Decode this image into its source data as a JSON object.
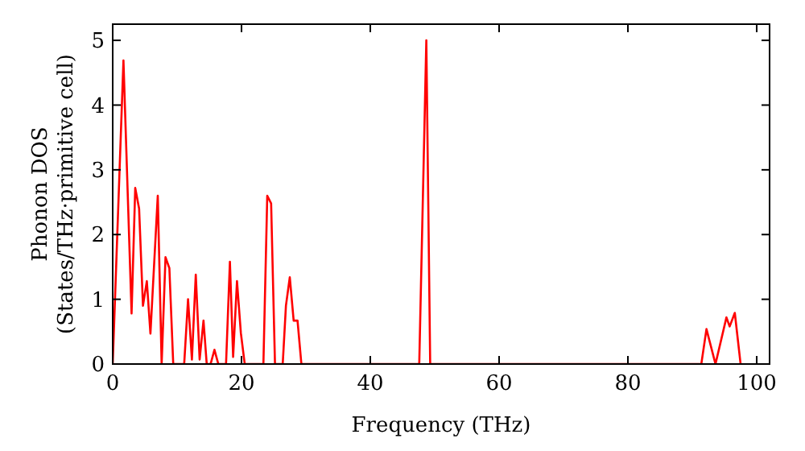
{
  "chart_data": {
    "type": "line",
    "xlabel": "Frequency (THz)",
    "ylabel": "Phonon DOS\n(States/THz·primitive cell)",
    "xlim": [
      0,
      102
    ],
    "ylim": [
      0,
      5.25
    ],
    "xticks": [
      0,
      20,
      40,
      60,
      80,
      100
    ],
    "yticks": [
      0,
      1,
      2,
      3,
      4,
      5
    ],
    "grid": false,
    "series": [
      {
        "color": "#ff0000",
        "x": [
          0,
          1.67,
          2.93,
          3.5,
          4.1,
          4.7,
          5.3,
          5.86,
          7.0,
          7.6,
          8.2,
          8.8,
          9.4,
          11.1,
          11.7,
          12.3,
          12.9,
          13.5,
          14.1,
          14.6,
          15.2,
          15.8,
          16.4,
          17.6,
          18.2,
          18.7,
          19.3,
          19.9,
          20.5,
          23.4,
          24.0,
          24.6,
          25.2,
          26.4,
          26.9,
          27.5,
          28.1,
          28.7,
          29.3,
          47.6,
          48.7,
          49.3,
          91.4,
          92.2,
          93.6,
          95.3,
          95.8,
          96.6,
          97.5
        ],
        "values": [
          0,
          4.69,
          0.78,
          2.72,
          2.4,
          0.9,
          1.28,
          0.47,
          2.6,
          0,
          1.65,
          1.48,
          0,
          0,
          1.0,
          0.07,
          1.38,
          0.07,
          0.67,
          0,
          0,
          0.22,
          0,
          0,
          1.58,
          0.11,
          1.28,
          0.48,
          0,
          0,
          2.6,
          2.48,
          0,
          0,
          0.9,
          1.34,
          0.67,
          0.67,
          0,
          0,
          5.0,
          0,
          0,
          0.54,
          0,
          0.72,
          0.58,
          0.79,
          0
        ]
      }
    ]
  }
}
